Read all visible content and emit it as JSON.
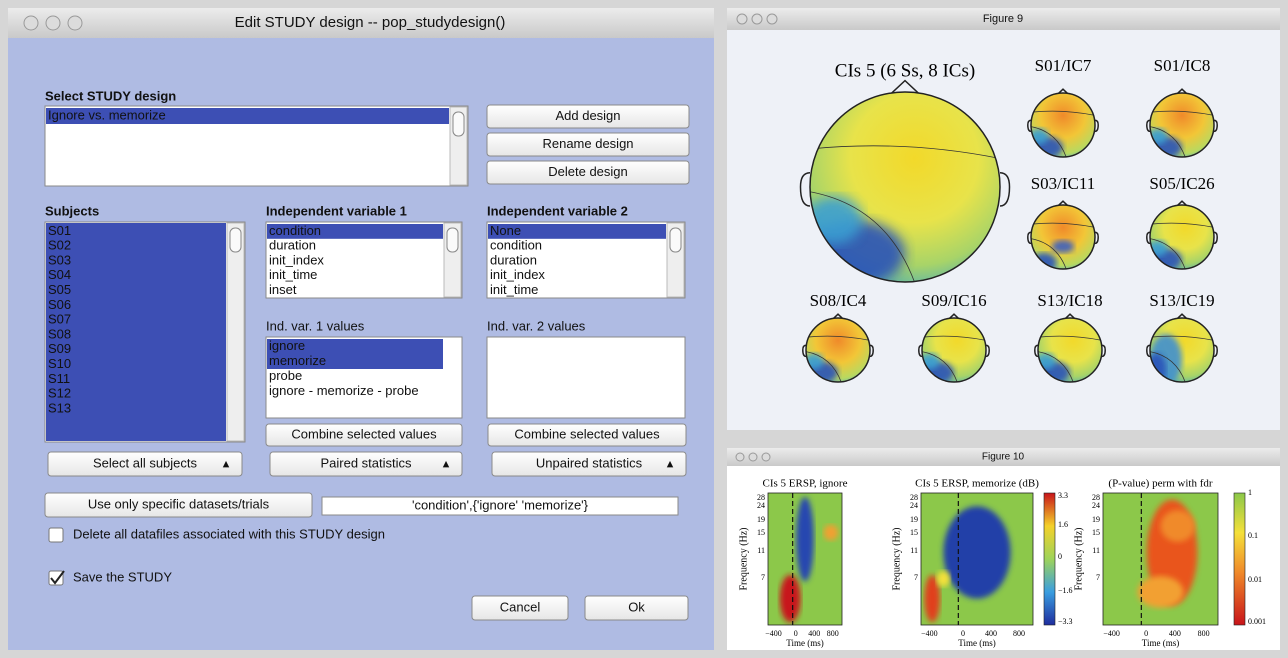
{
  "dialog": {
    "title": "Edit STUDY design -- pop_studydesign()",
    "design": {
      "label": "Select STUDY design",
      "items": [
        "Ignore vs. memorize"
      ],
      "selected": [
        0
      ]
    },
    "design_buttons": [
      "Add design",
      "Rename design",
      "Delete design"
    ],
    "subjects": {
      "label": "Subjects",
      "items": [
        "S01",
        "S02",
        "S03",
        "S04",
        "S05",
        "S06",
        "S07",
        "S08",
        "S09",
        "S10",
        "S11",
        "S12",
        "S13"
      ],
      "selected": [
        0,
        1,
        2,
        3,
        4,
        5,
        6,
        7,
        8,
        9,
        10,
        11,
        12
      ]
    },
    "iv1": {
      "label": "Independent variable 1",
      "items": [
        "condition",
        "duration",
        "init_index",
        "init_time",
        "inset"
      ],
      "selected": [
        0
      ]
    },
    "iv2": {
      "label": "Independent variable 2",
      "items": [
        "None",
        "condition",
        "duration",
        "init_index",
        "init_time"
      ],
      "selected": [
        0
      ]
    },
    "iv1_values": {
      "label": "Ind. var. 1 values",
      "items": [
        "ignore",
        "memorize",
        "probe",
        "ignore - memorize - probe"
      ],
      "selected": [
        0,
        1
      ]
    },
    "iv2_values": {
      "label": "Ind. var. 2 values",
      "items": [],
      "selected": []
    },
    "combine_buttons": [
      "Combine selected values",
      "Combine selected values"
    ],
    "popups": [
      "Select all subjects",
      "Paired statistics",
      "Unpaired statistics"
    ],
    "specific_button": "Use only specific datasets/trials",
    "specific_value": "'condition',{'ignore' 'memorize'}",
    "checkboxes": [
      {
        "label": "Delete all datafiles associated with this STUDY design",
        "checked": false
      },
      {
        "label": "Save the STUDY",
        "checked": true
      }
    ],
    "cancel": "Cancel",
    "ok": "Ok"
  },
  "figure9": {
    "title": "Figure 9",
    "maps": [
      "CIs 5 (6 Ss, 8 ICs)",
      "S01/IC7",
      "S01/IC8",
      "S03/IC11",
      "S05/IC26",
      "S08/IC4",
      "S09/IC16",
      "S13/IC18",
      "S13/IC19"
    ]
  },
  "figure10": {
    "title": "Figure 10",
    "panels": [
      {
        "title": "CIs 5 ERSP, ignore"
      },
      {
        "title": "CIs 5 ERSP, memorize (dB)"
      },
      {
        "title": "(P-value) perm with fdr"
      }
    ],
    "ylabel": "Frequency (Hz)",
    "xlabel": "Time (ms)",
    "yticks": [
      "28",
      "24",
      "19",
      "15",
      "11",
      "7"
    ],
    "xticks": [
      "−400",
      "0",
      "400",
      "800"
    ],
    "colorbars": [
      [
        "3.3",
        "1.6",
        "0",
        "−1.6",
        "−3.3"
      ],
      [
        "1",
        "0.1",
        "0.01",
        "0.001"
      ]
    ]
  }
}
